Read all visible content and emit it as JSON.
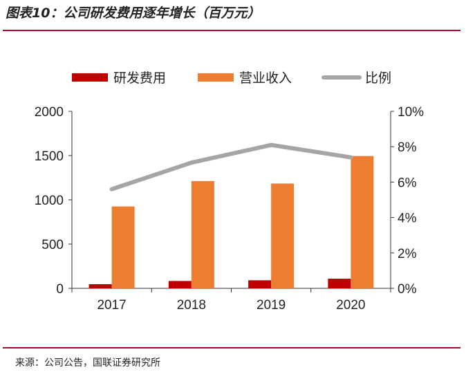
{
  "header": {
    "title": "图表10：公司研发费用逐年增长（百万元）"
  },
  "footer": {
    "source": "来源：公司公告，国联证券研究所"
  },
  "chart_data": {
    "type": "bar",
    "categories": [
      "2017",
      "2018",
      "2019",
      "2020"
    ],
    "series": [
      {
        "name": "研发费用",
        "type": "bar",
        "axis": "left",
        "color": "#c00000",
        "values": [
          47,
          83,
          91,
          109
        ]
      },
      {
        "name": "营业收入",
        "type": "bar",
        "axis": "left",
        "color": "#ed7d31",
        "values": [
          925,
          1212,
          1184,
          1495
        ]
      },
      {
        "name": "比例",
        "type": "line",
        "axis": "right",
        "color": "#a5a5a5",
        "values": [
          5.6,
          7.1,
          8.1,
          7.4
        ]
      }
    ],
    "ylim": [
      0,
      2000
    ],
    "yticks": [
      "0",
      "500",
      "1000",
      "1500",
      "2000"
    ],
    "y2lim": [
      0,
      10
    ],
    "y2ticks": [
      "0%",
      "2%",
      "4%",
      "6%",
      "8%",
      "10%"
    ],
    "legend": "top",
    "grid": false
  }
}
